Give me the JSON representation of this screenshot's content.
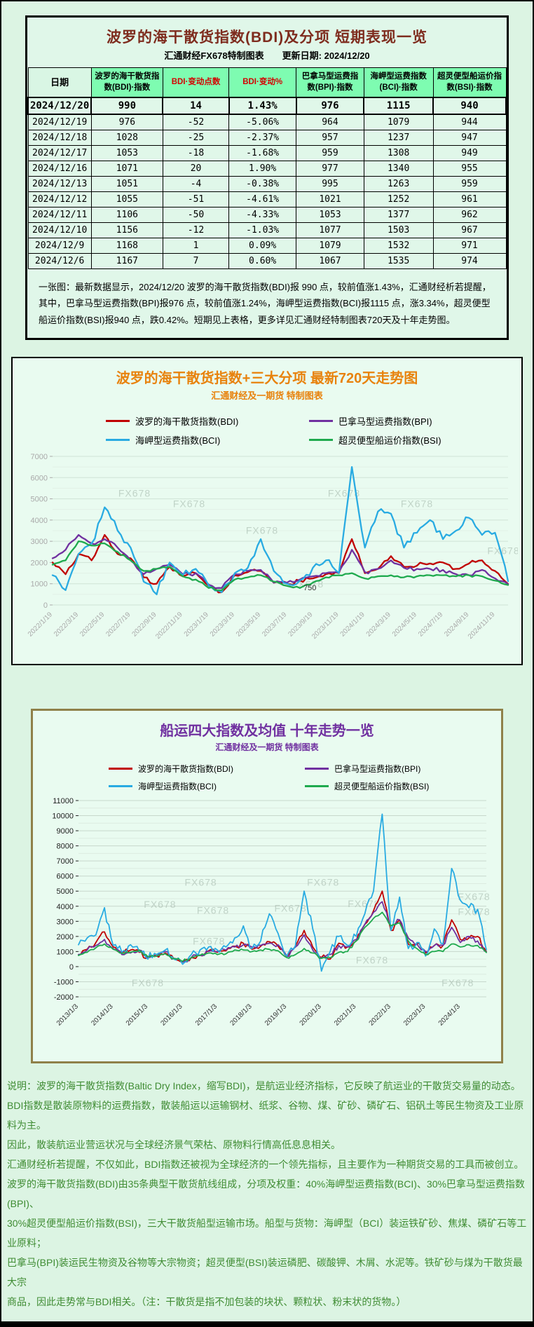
{
  "page": {
    "background": "#dcf4e3",
    "watermark": "FX678"
  },
  "table_panel": {
    "title": "波罗的海干散货指数(BDI)及分项 短期表现一览",
    "subtitle": "汇通财经FX678特制图表　　更新日期: 2024/12/20",
    "columns": [
      "日期",
      "波罗的海干散货指数(BDI)·指数",
      "BDI·变动点数",
      "BDI·变动%",
      "巴拿马型运费指数(BPI)·指数",
      "海岬型运费指数(BCI)·指数",
      "超灵便型船运价指数(BSI)·指数"
    ],
    "red_columns": [
      2,
      3
    ],
    "rows": [
      [
        "2024/12/20",
        "990",
        "14",
        "1.43%",
        "976",
        "1115",
        "940"
      ],
      [
        "2024/12/19",
        "976",
        "-52",
        "-5.06%",
        "964",
        "1079",
        "944"
      ],
      [
        "2024/12/18",
        "1028",
        "-25",
        "-2.37%",
        "957",
        "1237",
        "947"
      ],
      [
        "2024/12/17",
        "1053",
        "-18",
        "-1.68%",
        "959",
        "1308",
        "949"
      ],
      [
        "2024/12/16",
        "1071",
        "20",
        "1.90%",
        "977",
        "1340",
        "955"
      ],
      [
        "2024/12/13",
        "1051",
        "-4",
        "-0.38%",
        "995",
        "1263",
        "959"
      ],
      [
        "2024/12/12",
        "1055",
        "-51",
        "-4.61%",
        "1021",
        "1252",
        "961"
      ],
      [
        "2024/12/11",
        "1106",
        "-50",
        "-4.33%",
        "1053",
        "1377",
        "962"
      ],
      [
        "2024/12/10",
        "1156",
        "-12",
        "-1.03%",
        "1077",
        "1503",
        "967"
      ],
      [
        "2024/12/9",
        "1168",
        "1",
        "0.09%",
        "1079",
        "1532",
        "971"
      ],
      [
        "2024/12/6",
        "1167",
        "7",
        "0.60%",
        "1067",
        "1535",
        "974"
      ]
    ],
    "summary": "一张图：最新数据显示，2024/12/20 波罗的海干散货指数(BDI)报 990 点，较前值涨1.43%，汇通财经析若提醒，其中，巴拿马型运费指数(BPI)报976 点，较前值涨1.24%，海岬型运费指数(BCI)报1115 点，涨3.34%，超灵便型船运价指数(BSI)报940 点，跌0.42%。短期见上表格，更多详见汇通财经特制图表720天及十年走势图。"
  },
  "chart_data": [
    {
      "type": "line",
      "title": "波罗的海干散货指数+三大分项  最新720天走势图",
      "subtitle": "汇通财经及一期货  特制图表",
      "title_color": "#e8820c",
      "ylim": [
        0,
        7000
      ],
      "ystep": 1000,
      "grid": true,
      "legend_position": "top",
      "axis_color": "#a9a9a9",
      "tick_step": 2,
      "x_tick_labels": [
        "2022/1/19",
        "2022/3/19",
        "2022/5/19",
        "2022/7/19",
        "2022/9/19",
        "2022/11/19",
        "2023/1/19",
        "2023/3/19",
        "2023/5/19",
        "2023/7/19",
        "2023/9/19",
        "2023/11/19",
        "2024/1/19",
        "2024/3/19",
        "2024/5/19",
        "2024/7/19",
        "2024/9/19",
        "2024/11/19"
      ],
      "series": [
        {
          "name": "波罗的海干散货指数(BDI)",
          "color": "#c00000",
          "values": [
            2000,
            1450,
            2400,
            2100,
            3300,
            2400,
            2200,
            1300,
            1000,
            1800,
            1350,
            1500,
            900,
            600,
            1400,
            1550,
            1600,
            1050,
            1000,
            1150,
            1250,
            1450,
            1500,
            3100,
            1500,
            1700,
            2300,
            1800,
            1850,
            1950,
            2000,
            1700,
            1950,
            2100,
            1600,
            990
          ]
        },
        {
          "name": "巴拿马型运费指数(BPI)",
          "color": "#7030a0",
          "values": [
            2200,
            2600,
            3300,
            2900,
            3100,
            2700,
            2100,
            1450,
            1700,
            1900,
            1450,
            1500,
            950,
            800,
            1450,
            1600,
            1650,
            1050,
            1050,
            1200,
            1350,
            1500,
            1550,
            2600,
            1550,
            1700,
            2100,
            1750,
            1700,
            1700,
            1650,
            1450,
            1400,
            1650,
            1250,
            976
          ]
        },
        {
          "name": "海岬型运费指数(BCI)",
          "color": "#29abe2",
          "values": [
            1400,
            700,
            2400,
            2900,
            4600,
            3500,
            2700,
            1100,
            500,
            2000,
            1400,
            1700,
            900,
            600,
            1500,
            1750,
            3100,
            1600,
            1000,
            1150,
            1750,
            2100,
            1500,
            6500,
            2700,
            4400,
            4300,
            2700,
            3400,
            4000,
            3100,
            3500,
            4100,
            3300,
            3400,
            1115
          ]
        },
        {
          "name": "超灵便型船运价指数(BSI)",
          "color": "#1faa4e",
          "values": [
            1900,
            2100,
            3000,
            2800,
            2900,
            2500,
            2100,
            1600,
            1700,
            1800,
            1350,
            1200,
            800,
            700,
            1200,
            1300,
            1400,
            1100,
            900,
            800,
            1050,
            1300,
            1400,
            1500,
            1250,
            1350,
            1400,
            1300,
            1350,
            1400,
            1400,
            1350,
            1400,
            1350,
            1150,
            940
          ]
        }
      ],
      "watermarks": [
        [
          0.18,
          5100
        ],
        [
          0.3,
          4600
        ],
        [
          0.46,
          3350
        ],
        [
          0.64,
          5100
        ],
        [
          0.8,
          4600
        ],
        [
          0.99,
          2400
        ],
        [
          0.56,
          820
        ]
      ],
      "annotations": [
        {
          "x": 0.565,
          "y": 700,
          "text": "750"
        }
      ]
    },
    {
      "type": "line",
      "title": "船运四大指数及均值 十年走势一览",
      "subtitle": "汇通财经及一期货 特制图表",
      "title_color": "#7030a0",
      "ylim": [
        -2000,
        11000
      ],
      "ystep": 1000,
      "grid": true,
      "legend_position": "top",
      "axis_color": "#222222",
      "tick_step": 4,
      "x_tick_labels": [
        "2013/1/3",
        "2014/1/3",
        "2015/1/3",
        "2016/1/3",
        "2017/1/3",
        "2018/1/3",
        "2019/1/3",
        "2020/1/3",
        "2021/1/3",
        "2022/1/3",
        "2023/1/3",
        "2024/1/3"
      ],
      "series": [
        {
          "name": "波罗的海干散货指数(BDI)",
          "color": "#c00000",
          "values": [
            780,
            1150,
            1600,
            2300,
            1300,
            950,
            1100,
            950,
            600,
            700,
            900,
            500,
            330,
            600,
            750,
            1050,
            950,
            1050,
            1350,
            1550,
            1150,
            1350,
            1650,
            1350,
            680,
            1350,
            2400,
            1300,
            600,
            500,
            1550,
            1300,
            1700,
            2800,
            3700,
            5000,
            2400,
            3100,
            1500,
            1500,
            900,
            1400,
            1400,
            3100,
            1800,
            1900,
            2000,
            990
          ]
        },
        {
          "name": "巴拿马型运费指数(BPI)",
          "color": "#7030a0",
          "values": [
            800,
            1100,
            1400,
            1800,
            1200,
            800,
            900,
            1100,
            600,
            700,
            1000,
            550,
            300,
            600,
            750,
            1000,
            1000,
            1100,
            1300,
            1450,
            1300,
            1400,
            1550,
            1450,
            700,
            1300,
            2100,
            1100,
            600,
            800,
            1400,
            1300,
            1800,
            2800,
            3600,
            4300,
            2700,
            3100,
            1900,
            1500,
            1000,
            1400,
            1400,
            2600,
            1600,
            2000,
            1700,
            976
          ]
        },
        {
          "name": "海岬型运费指数(BCI)",
          "color": "#29abe2",
          "values": [
            1450,
            1900,
            2100,
            3900,
            1400,
            950,
            1450,
            1000,
            500,
            800,
            1100,
            500,
            160,
            800,
            1100,
            1300,
            1100,
            1300,
            1900,
            2700,
            1200,
            1700,
            3500,
            2200,
            700,
            1400,
            5000,
            2500,
            -300,
            1000,
            2000,
            1400,
            2000,
            3500,
            5000,
            10100,
            2400,
            4600,
            1200,
            1600,
            700,
            2500,
            1500,
            6500,
            4400,
            3900,
            3800,
            1115
          ]
        },
        {
          "name": "超灵便型船运价指数(BSI)",
          "color": "#1faa4e",
          "values": [
            740,
            950,
            1250,
            1500,
            1150,
            900,
            950,
            1100,
            650,
            700,
            850,
            550,
            350,
            600,
            750,
            900,
            800,
            850,
            1100,
            1100,
            1000,
            1100,
            1150,
            1050,
            600,
            800,
            1200,
            900,
            550,
            600,
            950,
            1000,
            1700,
            2600,
            3200,
            3600,
            2700,
            2900,
            1700,
            1200,
            800,
            1000,
            1000,
            1500,
            1300,
            1450,
            1400,
            940
          ]
        }
      ],
      "watermarks": [
        [
          0.3,
          5350
        ],
        [
          0.6,
          5350
        ],
        [
          0.2,
          3900
        ],
        [
          0.33,
          3500
        ],
        [
          0.52,
          3650
        ],
        [
          0.7,
          3950
        ],
        [
          0.97,
          4400
        ],
        [
          0.32,
          1450
        ],
        [
          0.72,
          200
        ],
        [
          0.17,
          -1300
        ],
        [
          0.93,
          -1300
        ],
        [
          0.97,
          3400
        ]
      ],
      "annotations": []
    }
  ],
  "footnotes": [
    "说明：波罗的海干散货指数(Baltic Dry Index，缩写BDI)，是航运业经济指标，它反映了航运业的干散货交易量的动态。",
    "BDI指数是散装原物料的运费指数，散装船运以运输钢材、纸浆、谷物、煤、矿砂、磷矿石、铝矾土等民生物资及工业原料为主。",
    "因此，散装航运业营运状况与全球经济景气荣枯、原物料行情高低息息相关。",
    "汇通财经析若提醒，不仅如此，BDI指数还被视为全球经济的一个领先指标，且主要作为一种期货交易的工具而被创立。",
    "波罗的海干散货指数(BDI)由35条典型干散货航线组成，分项及权重：40%海岬型运费指数(BCI)、30%巴拿马型运费指数(BPI)、",
    "30%超灵便型船运价指数(BSI)，三大干散货船型运输市场。船型与货物：海岬型（BCI）装运铁矿砂、焦煤、磷矿石等工业原料；",
    "巴拿马(BPI)装运民生物资及谷物等大宗物资；超灵便型(BSI)装运磷肥、碳酸钾、木屑、水泥等。铁矿砂与煤为干散货最大宗",
    "商品，因此走势常与BDI相关。（注：干散货是指不加包装的块状、颗粒状、粉末状的货物。）"
  ]
}
